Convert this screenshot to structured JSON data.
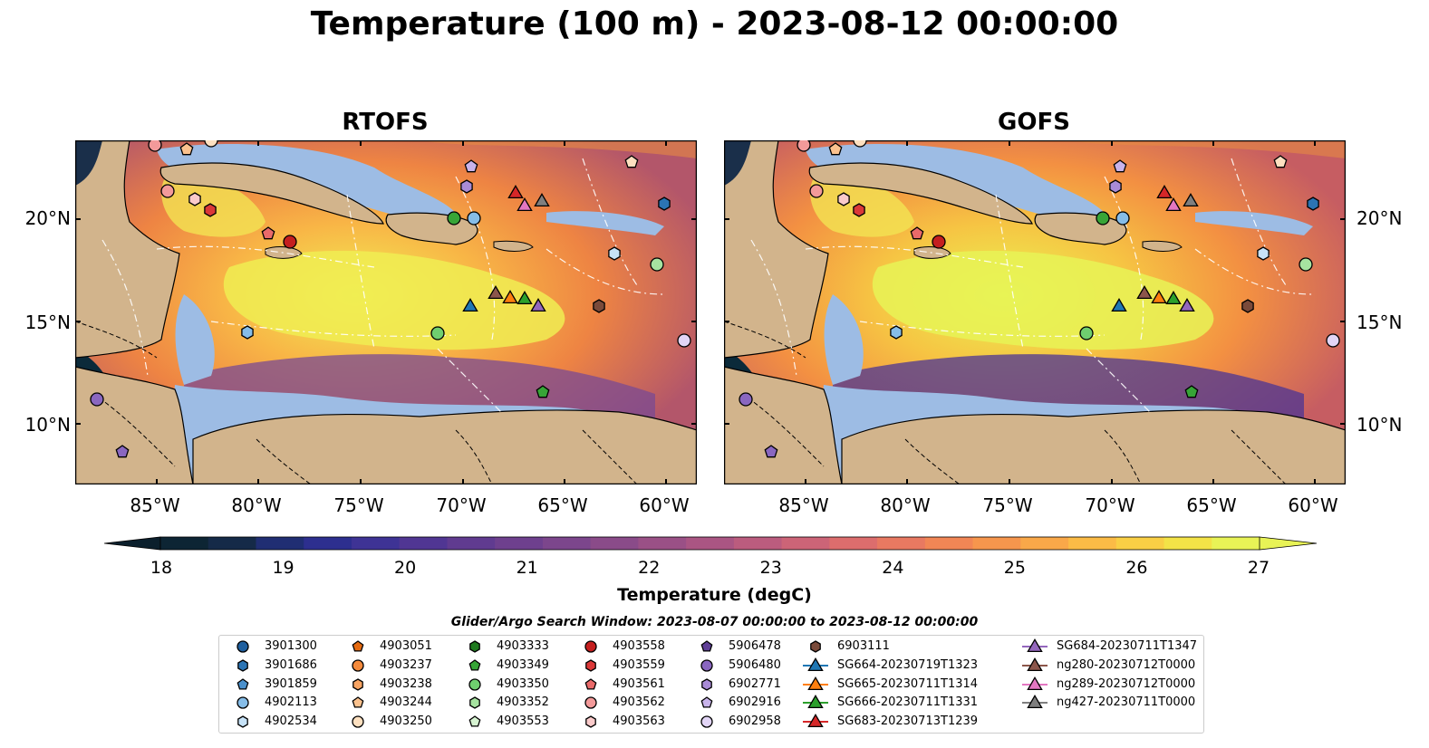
{
  "title": "Temperature (100 m) - 2023-08-12 00:00:00",
  "panels": [
    {
      "title": "RTOFS"
    },
    {
      "title": "GOFS"
    }
  ],
  "axes": {
    "lat_ticks": [
      "20°N",
      "15°N",
      "10°N"
    ],
    "lon_ticks": [
      "85°W",
      "80°W",
      "75°W",
      "70°W",
      "65°W",
      "60°W"
    ]
  },
  "colorbar": {
    "label": "Temperature (degC)",
    "ticks": [
      "18",
      "19",
      "20",
      "21",
      "22",
      "23",
      "24",
      "25",
      "26",
      "27"
    ],
    "range": [
      18,
      27
    ],
    "extend": "both",
    "colormap": "thermal"
  },
  "legend": {
    "caption": "Glider/Argo Search Window: 2023-08-07 00:00:00 to 2023-08-12 00:00:00",
    "columns": [
      [
        {
          "label": "3901300",
          "marker": "circle",
          "color": "#1f5f9e"
        },
        {
          "label": "3901686",
          "marker": "hexagon",
          "color": "#2b74b4"
        },
        {
          "label": "3901859",
          "marker": "pentagon",
          "color": "#4a90cc"
        },
        {
          "label": "4902113",
          "marker": "circle",
          "color": "#86bde8"
        },
        {
          "label": "4902534",
          "marker": "hexagon",
          "color": "#c6e2f7"
        }
      ],
      [
        {
          "label": "4903051",
          "marker": "pentagon",
          "color": "#e56a10"
        },
        {
          "label": "4903237",
          "marker": "circle",
          "color": "#f48a3c"
        },
        {
          "label": "4903238",
          "marker": "hexagon",
          "color": "#f8a463"
        },
        {
          "label": "4903244",
          "marker": "pentagon",
          "color": "#fbc28e"
        },
        {
          "label": "4903250",
          "marker": "circle",
          "color": "#fde0c0"
        }
      ],
      [
        {
          "label": "4903333",
          "marker": "hexagon",
          "color": "#1f7a1f"
        },
        {
          "label": "4903349",
          "marker": "pentagon",
          "color": "#37a537"
        },
        {
          "label": "4903350",
          "marker": "circle",
          "color": "#6fcf6f"
        },
        {
          "label": "4903352",
          "marker": "hexagon",
          "color": "#a6e3a0"
        },
        {
          "label": "4903553",
          "marker": "pentagon",
          "color": "#d7f4d2"
        }
      ],
      [
        {
          "label": "4903558",
          "marker": "circle",
          "color": "#c41f1f"
        },
        {
          "label": "4903559",
          "marker": "hexagon",
          "color": "#db3838"
        },
        {
          "label": "4903561",
          "marker": "pentagon",
          "color": "#ea6a6a"
        },
        {
          "label": "4903562",
          "marker": "circle",
          "color": "#f39a9a"
        },
        {
          "label": "4903563",
          "marker": "hexagon",
          "color": "#facaca"
        }
      ],
      [
        {
          "label": "5906478",
          "marker": "pentagon",
          "color": "#5f3f96"
        },
        {
          "label": "5906480",
          "marker": "circle",
          "color": "#8a67c0"
        },
        {
          "label": "6902771",
          "marker": "hexagon",
          "color": "#a98bd6"
        },
        {
          "label": "6902916",
          "marker": "pentagon",
          "color": "#c8b3ea"
        },
        {
          "label": "6902958",
          "marker": "circle",
          "color": "#e2d5f6"
        }
      ],
      [
        {
          "label": "6903111",
          "marker": "hexagon",
          "color": "#7a4a3a"
        },
        {
          "label": "SG664-20230719T1323",
          "marker": "triangle-line",
          "color": "#1f77b4"
        },
        {
          "label": "SG665-20230711T1314",
          "marker": "triangle-line",
          "color": "#ff7f0e"
        },
        {
          "label": "SG666-20230711T1331",
          "marker": "triangle-line",
          "color": "#2ca02c"
        },
        {
          "label": "SG683-20230713T1239",
          "marker": "triangle-line",
          "color": "#d62728"
        }
      ],
      [
        {
          "label": "SG684-20230711T1347",
          "marker": "triangle-line",
          "color": "#9467bd"
        },
        {
          "label": "ng280-20230712T0000",
          "marker": "triangle-line",
          "color": "#8c564b"
        },
        {
          "label": "ng289-20230712T0000",
          "marker": "triangle-line",
          "color": "#e377c2"
        },
        {
          "label": "ng427-20230711T0000",
          "marker": "triangle-line",
          "color": "#7f7f7f"
        }
      ]
    ]
  }
}
